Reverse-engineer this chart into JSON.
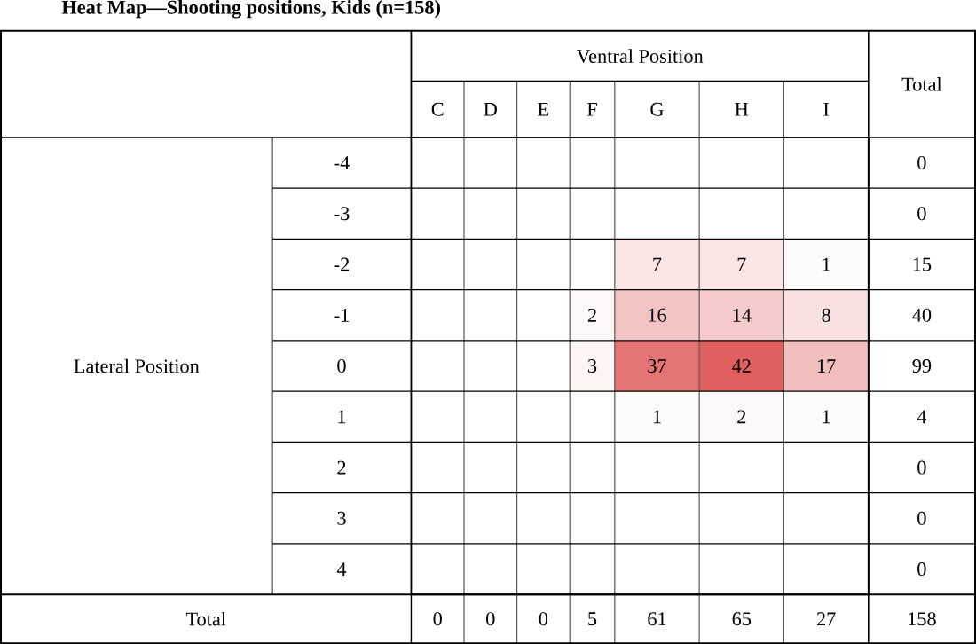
{
  "chart_data": {
    "type": "heatmap",
    "title": "Heat Map—Shooting positions, Kids (n=158)",
    "xlabel": "Ventral Position",
    "y2label": "Total",
    "data_labels": true,
    "categories": [
      "C",
      "D",
      "E",
      "F",
      "G",
      "H",
      "I"
    ],
    "y_categories": [
      "-4",
      "-3",
      "-2",
      "-1",
      "0",
      "1",
      "2",
      "3",
      "4"
    ],
    "y2_categories": [
      "0",
      "0",
      "15",
      "40",
      "99",
      "4",
      "0",
      "0",
      "0"
    ],
    "cells": [
      [
        null,
        null,
        null,
        null,
        null,
        null,
        null
      ],
      [
        null,
        null,
        null,
        null,
        null,
        null,
        null
      ],
      [
        null,
        null,
        null,
        null,
        7,
        7,
        1
      ],
      [
        null,
        null,
        null,
        2,
        16,
        14,
        8
      ],
      [
        null,
        null,
        null,
        3,
        37,
        42,
        17
      ],
      [
        null,
        null,
        null,
        null,
        1,
        2,
        1
      ],
      [
        null,
        null,
        null,
        null,
        null,
        null,
        null
      ],
      [
        null,
        null,
        null,
        null,
        null,
        null,
        null
      ],
      [
        null,
        null,
        null,
        null,
        null,
        null,
        null
      ]
    ],
    "annotations": [
      "Lateral Position",
      "Total",
      "0",
      "0",
      "0",
      "5",
      "61",
      "65",
      "27",
      "158"
    ]
  }
}
